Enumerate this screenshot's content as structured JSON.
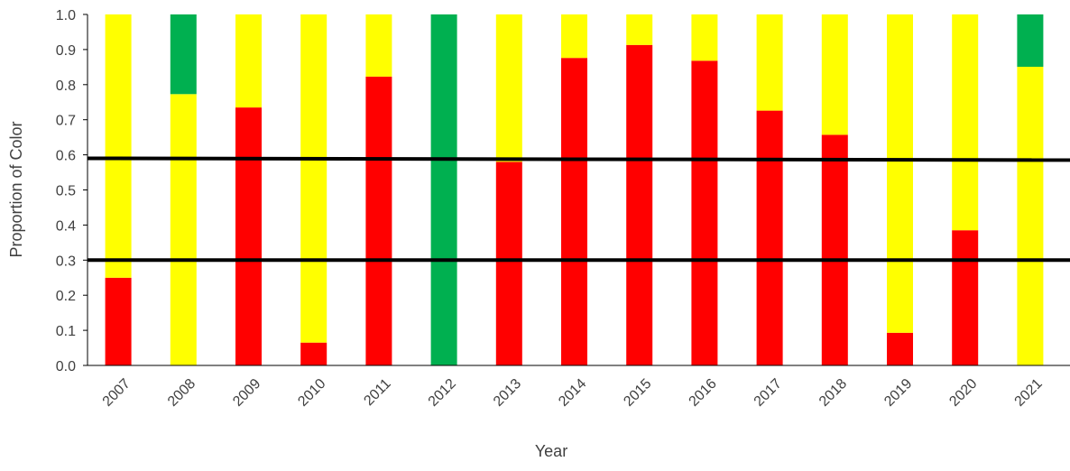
{
  "chart_data": {
    "type": "bar",
    "stacked": true,
    "normalized": true,
    "title": "",
    "xlabel": "Year",
    "ylabel": "Proportion of Color",
    "ylim": [
      0,
      1.0
    ],
    "y_ticks": [
      "0.0",
      "0.1",
      "0.2",
      "0.3",
      "0.4",
      "0.5",
      "0.6",
      "0.7",
      "0.8",
      "0.9",
      "1.0"
    ],
    "categories": [
      "2007",
      "2008",
      "2009",
      "2010",
      "2011",
      "2012",
      "2013",
      "2014",
      "2015",
      "2016",
      "2017",
      "2018",
      "2019",
      "2020",
      "2021"
    ],
    "series": [
      {
        "color": "#ff0000",
        "values": [
          0.25,
          0.0,
          0.735,
          0.065,
          0.823,
          0.0,
          0.58,
          0.876,
          0.913,
          0.868,
          0.726,
          0.657,
          0.093,
          0.385,
          0.0
        ]
      },
      {
        "color": "#ffff00",
        "values": [
          0.75,
          0.773,
          0.265,
          0.935,
          0.177,
          0.0,
          0.42,
          0.124,
          0.087,
          0.132,
          0.274,
          0.343,
          0.907,
          0.615,
          0.851
        ]
      },
      {
        "color": "#00b050",
        "values": [
          0.0,
          0.227,
          0.0,
          0.0,
          0.0,
          1.0,
          0.0,
          0.0,
          0.0,
          0.0,
          0.0,
          0.0,
          0.0,
          0.0,
          0.149
        ]
      }
    ],
    "reference_lines": [
      {
        "y_start": 0.59,
        "y_end": 0.585,
        "color": "#000000"
      },
      {
        "y_start": 0.3,
        "y_end": 0.3,
        "color": "#000000"
      }
    ],
    "grid": false,
    "legend": "none"
  }
}
